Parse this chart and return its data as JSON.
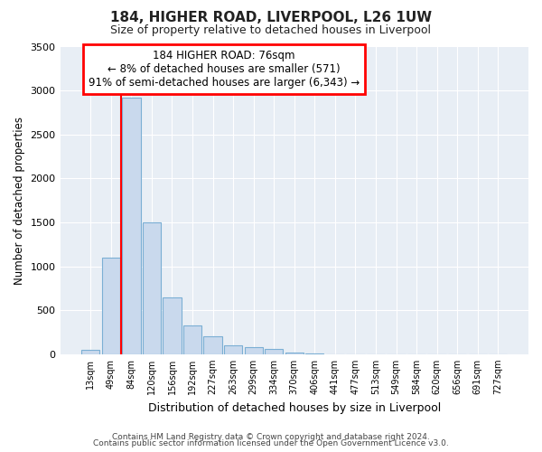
{
  "title": "184, HIGHER ROAD, LIVERPOOL, L26 1UW",
  "subtitle": "Size of property relative to detached houses in Liverpool",
  "xlabel": "Distribution of detached houses by size in Liverpool",
  "ylabel": "Number of detached properties",
  "bar_color": "#c9d9ed",
  "bar_edge_color": "#7bafd4",
  "bin_labels": [
    "13sqm",
    "49sqm",
    "84sqm",
    "120sqm",
    "156sqm",
    "192sqm",
    "227sqm",
    "263sqm",
    "299sqm",
    "334sqm",
    "370sqm",
    "406sqm",
    "441sqm",
    "477sqm",
    "513sqm",
    "549sqm",
    "584sqm",
    "620sqm",
    "656sqm",
    "691sqm",
    "727sqm"
  ],
  "bar_heights": [
    50,
    1100,
    2920,
    1500,
    650,
    330,
    200,
    100,
    80,
    55,
    20,
    5,
    2,
    1,
    0,
    0,
    0,
    0,
    0,
    0,
    0
  ],
  "ylim": [
    0,
    3500
  ],
  "yticks": [
    0,
    500,
    1000,
    1500,
    2000,
    2500,
    3000,
    3500
  ],
  "annotation_title": "184 HIGHER ROAD: 76sqm",
  "annotation_line1": "← 8% of detached houses are smaller (571)",
  "annotation_line2": "91% of semi-detached houses are larger (6,343) →",
  "footer_line1": "Contains HM Land Registry data © Crown copyright and database right 2024.",
  "footer_line2": "Contains public sector information licensed under the Open Government Licence v3.0.",
  "background_color": "#ffffff",
  "plot_bg_color": "#e8eef5",
  "grid_color": "#ffffff"
}
